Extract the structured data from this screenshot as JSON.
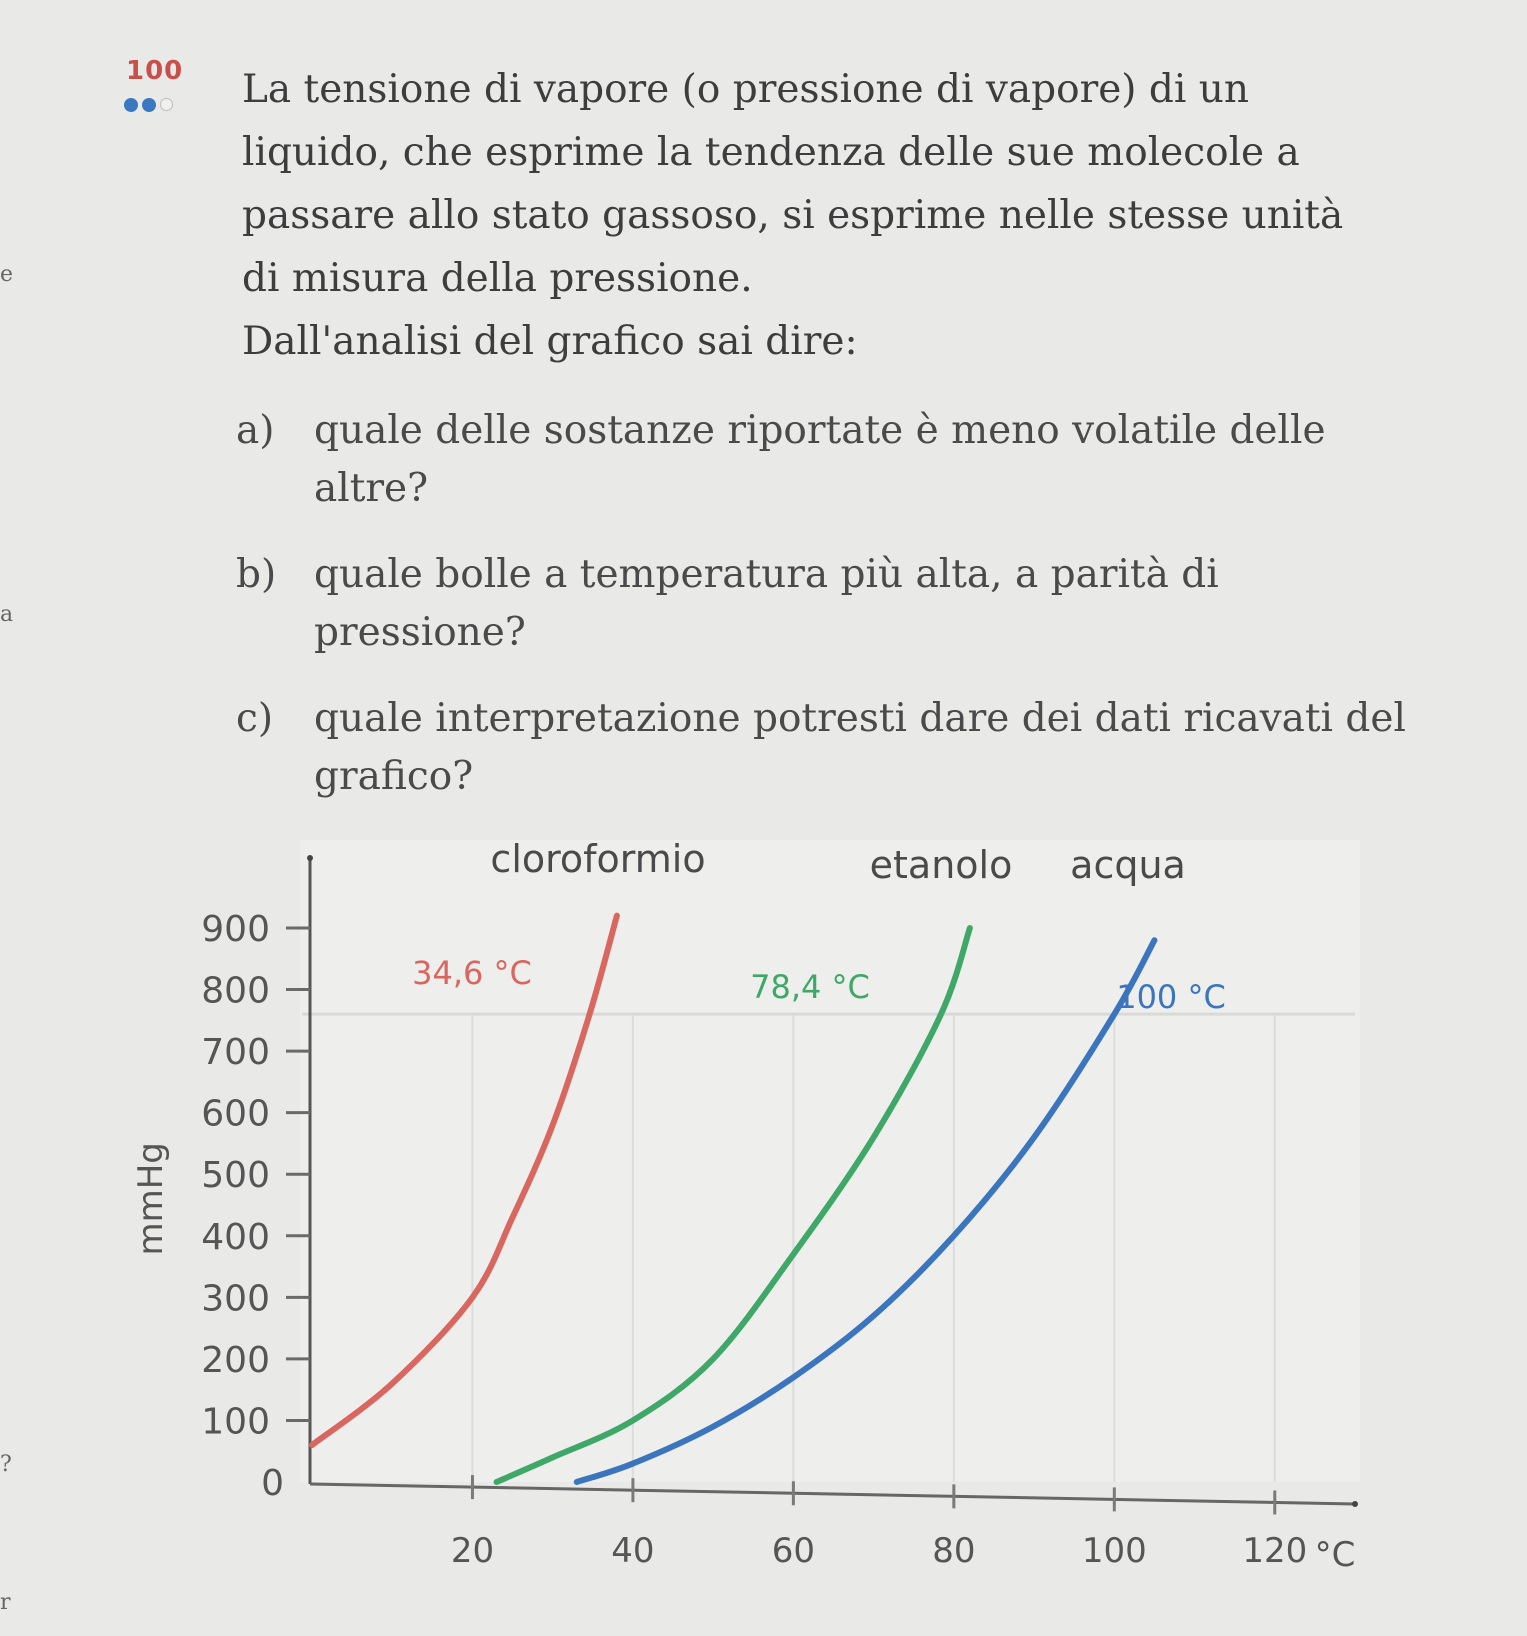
{
  "margin_marks": [
    "e",
    "a",
    "?",
    "r"
  ],
  "exercise": {
    "number": "100",
    "difficulty_filled": 2,
    "difficulty_total": 3,
    "intro": "La tensione di vapore (o pressione di vapore) di un liquido, che esprime la tendenza delle sue molecole a passare allo stato gassoso, si esprime nelle stesse unità di misura della pressione.",
    "prompt": "Dall'analisi del grafico sai dire:",
    "questions": [
      {
        "letter": "a)",
        "text": "quale delle sostanze riportate è meno volatile delle altre?"
      },
      {
        "letter": "b)",
        "text": "quale bolle a temperatura più alta, a parità di pressione?"
      },
      {
        "letter": "c)",
        "text": "quale interpretazione potresti dare dei dati ricavati del grafico?"
      }
    ]
  },
  "chart_data": {
    "type": "line",
    "title": "",
    "xlabel": "°C",
    "ylabel": "mmHg",
    "xlim": [
      0,
      130
    ],
    "ylim": [
      0,
      950
    ],
    "x_ticks": [
      20,
      40,
      60,
      80,
      100,
      120
    ],
    "y_ticks": [
      0,
      100,
      200,
      300,
      400,
      500,
      600,
      700,
      800,
      900
    ],
    "reference_line_y": 760,
    "series": [
      {
        "name": "cloroformio",
        "color": "#d9665f",
        "boiling_label": "34,6 °C",
        "points": [
          [
            0,
            60
          ],
          [
            10,
            160
          ],
          [
            20,
            300
          ],
          [
            25,
            430
          ],
          [
            30,
            580
          ],
          [
            34.6,
            760
          ],
          [
            38,
            920
          ]
        ]
      },
      {
        "name": "etanolo",
        "color": "#3fa868",
        "boiling_label": "78,4 °C",
        "points": [
          [
            23,
            0
          ],
          [
            30,
            40
          ],
          [
            40,
            100
          ],
          [
            50,
            200
          ],
          [
            60,
            370
          ],
          [
            70,
            560
          ],
          [
            78.4,
            760
          ],
          [
            82,
            900
          ]
        ]
      },
      {
        "name": "acqua",
        "color": "#3a75bd",
        "boiling_label": "100 °C",
        "points": [
          [
            33,
            0
          ],
          [
            40,
            30
          ],
          [
            50,
            90
          ],
          [
            60,
            170
          ],
          [
            70,
            270
          ],
          [
            80,
            400
          ],
          [
            90,
            560
          ],
          [
            100,
            760
          ],
          [
            105,
            880
          ]
        ]
      }
    ]
  }
}
